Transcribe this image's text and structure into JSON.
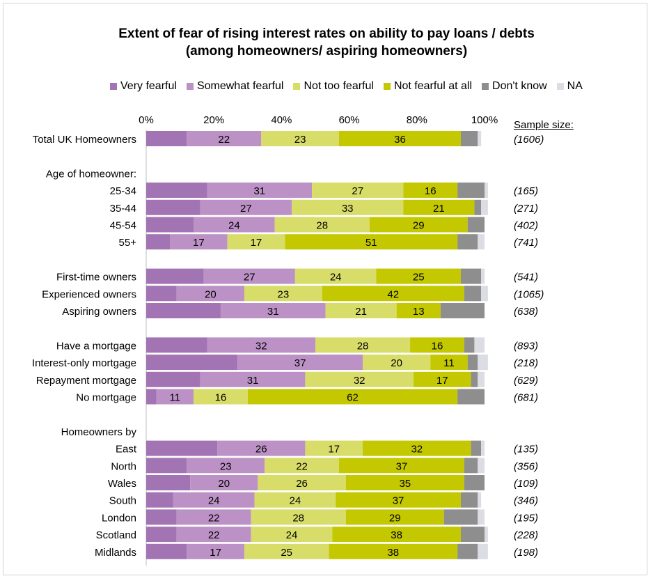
{
  "chart_data": {
    "type": "stacked-bar-horizontal",
    "title_line1": "Extent of fear of rising interest rates on ability to pay loans / debts",
    "title_line2": "(among homeowners/ aspiring homeowners)",
    "xlim": [
      0,
      100
    ],
    "x_ticks": [
      "0%",
      "20%",
      "40%",
      "60%",
      "80%",
      "100%"
    ],
    "series": [
      {
        "name": "Very fearful",
        "color": "#a374b3"
      },
      {
        "name": "Somewhat fearful",
        "color": "#bc92c6"
      },
      {
        "name": "Not too fearful",
        "color": "#d8dd6a"
      },
      {
        "name": "Not fearful at all",
        "color": "#c4c800"
      },
      {
        "name": "Don't know",
        "color": "#8e8e8e"
      },
      {
        "name": "NA",
        "color": "#dcdce4"
      }
    ],
    "sample_size_label": "Sample size:",
    "rows": [
      {
        "label": "Total UK Homeowners",
        "values": [
          12,
          22,
          23,
          36,
          5,
          1
        ],
        "labels": [
          "",
          "22",
          "23",
          "36",
          "",
          ""
        ],
        "sample": "(1606)",
        "slot": 0
      },
      {
        "label": "Age of homeowner:",
        "header": true,
        "slot": 2
      },
      {
        "label": "25-34",
        "values": [
          18,
          31,
          27,
          16,
          8,
          1
        ],
        "labels": [
          "",
          "31",
          "27",
          "16",
          "",
          ""
        ],
        "sample": "(165)",
        "slot": 3
      },
      {
        "label": "35-44",
        "values": [
          16,
          27,
          33,
          21,
          2,
          2
        ],
        "labels": [
          "",
          "27",
          "33",
          "21",
          "",
          ""
        ],
        "sample": "(271)",
        "slot": 4
      },
      {
        "label": "45-54",
        "values": [
          14,
          24,
          28,
          29,
          5,
          0
        ],
        "labels": [
          "",
          "24",
          "28",
          "29",
          "",
          ""
        ],
        "sample": "(402)",
        "slot": 5
      },
      {
        "label": "55+",
        "values": [
          7,
          17,
          17,
          51,
          6,
          2
        ],
        "labels": [
          "",
          "17",
          "17",
          "51",
          "",
          ""
        ],
        "sample": "(741)",
        "slot": 6
      },
      {
        "label": "First-time owners",
        "values": [
          17,
          27,
          24,
          25,
          6,
          1
        ],
        "labels": [
          "",
          "27",
          "24",
          "25",
          "",
          ""
        ],
        "sample": "(541)",
        "slot": 8
      },
      {
        "label": "Experienced owners",
        "values": [
          9,
          20,
          23,
          42,
          5,
          2
        ],
        "labels": [
          "",
          "20",
          "23",
          "42",
          "",
          ""
        ],
        "sample": "(1065)",
        "slot": 9
      },
      {
        "label": "Aspiring owners",
        "values": [
          22,
          31,
          21,
          13,
          13,
          0
        ],
        "labels": [
          "",
          "31",
          "21",
          "13",
          "",
          ""
        ],
        "sample": "(638)",
        "slot": 10
      },
      {
        "label": "Have a mortgage",
        "values": [
          18,
          32,
          28,
          16,
          3,
          3
        ],
        "labels": [
          "",
          "32",
          "28",
          "16",
          "",
          ""
        ],
        "sample": "(893)",
        "slot": 12
      },
      {
        "label": "Interest-only mortgage",
        "values": [
          27,
          37,
          20,
          11,
          3,
          3
        ],
        "labels": [
          "",
          "37",
          "20",
          "11",
          "",
          ""
        ],
        "sample": "(218)",
        "slot": 13
      },
      {
        "label": "Repayment mortgage",
        "values": [
          16,
          31,
          32,
          17,
          2,
          2
        ],
        "labels": [
          "",
          "31",
          "32",
          "17",
          "",
          ""
        ],
        "sample": "(629)",
        "slot": 14
      },
      {
        "label": "No mortgage",
        "values": [
          3,
          11,
          16,
          62,
          8,
          0
        ],
        "labels": [
          "",
          "11",
          "16",
          "62",
          "",
          ""
        ],
        "sample": "(681)",
        "slot": 15
      },
      {
        "label": "Homeowners by",
        "header": true,
        "slot": 17
      },
      {
        "label": "East",
        "values": [
          21,
          26,
          17,
          32,
          3,
          1
        ],
        "labels": [
          "",
          "26",
          "17",
          "32",
          "",
          ""
        ],
        "sample": "(135)",
        "slot": 18
      },
      {
        "label": "North",
        "values": [
          12,
          23,
          22,
          37,
          4,
          2
        ],
        "labels": [
          "",
          "23",
          "22",
          "37",
          "",
          ""
        ],
        "sample": "(356)",
        "slot": 19
      },
      {
        "label": "Wales",
        "values": [
          13,
          20,
          26,
          35,
          6,
          0
        ],
        "labels": [
          "",
          "20",
          "26",
          "35",
          "",
          ""
        ],
        "sample": "(109)",
        "slot": 20
      },
      {
        "label": "South",
        "values": [
          8,
          24,
          24,
          37,
          5,
          1
        ],
        "labels": [
          "",
          "24",
          "24",
          "37",
          "",
          ""
        ],
        "sample": "(346)",
        "slot": 21
      },
      {
        "label": "London",
        "values": [
          9,
          22,
          28,
          29,
          10,
          2
        ],
        "labels": [
          "",
          "22",
          "28",
          "29",
          "",
          ""
        ],
        "sample": "(195)",
        "slot": 22
      },
      {
        "label": "Scotland",
        "values": [
          9,
          22,
          24,
          38,
          7,
          1
        ],
        "labels": [
          "",
          "22",
          "24",
          "38",
          "",
          ""
        ],
        "sample": "(228)",
        "slot": 23
      },
      {
        "label": "Midlands",
        "values": [
          12,
          17,
          25,
          38,
          6,
          3
        ],
        "labels": [
          "",
          "17",
          "25",
          "38",
          "",
          ""
        ],
        "sample": "(198)",
        "slot": 24
      }
    ]
  }
}
